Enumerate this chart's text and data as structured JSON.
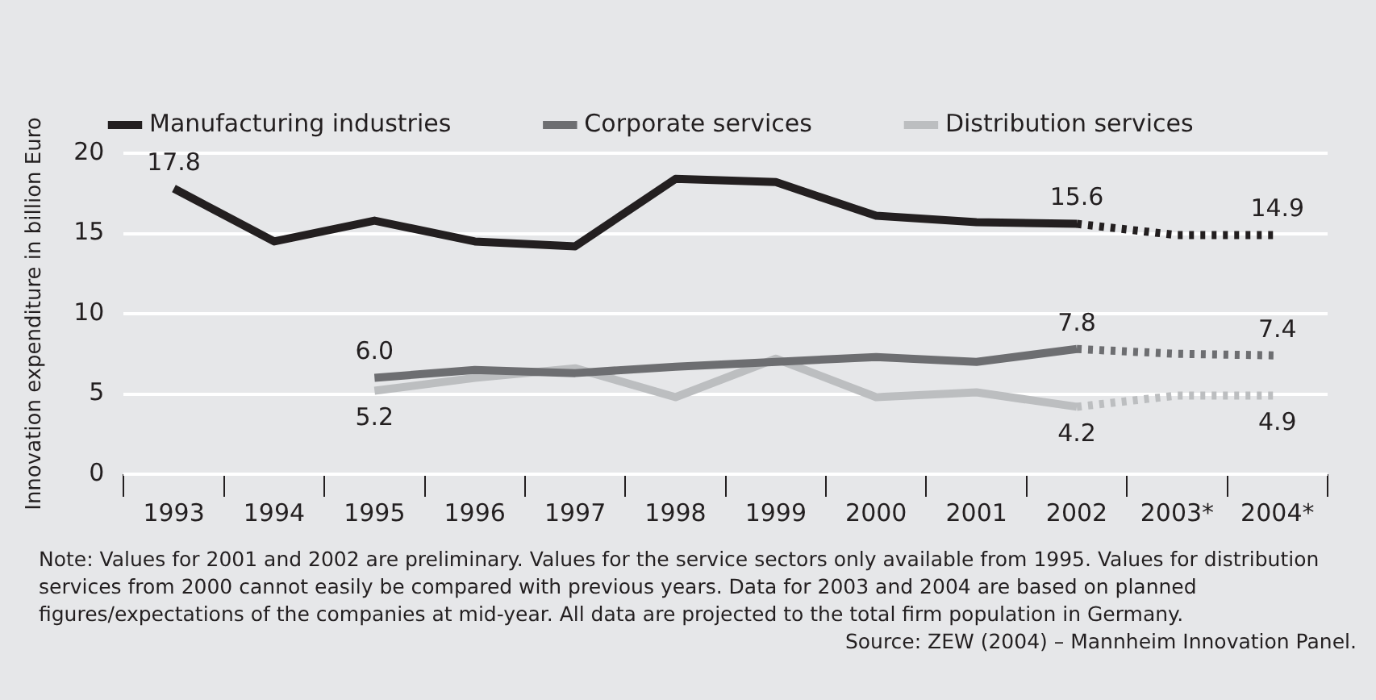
{
  "chart_data": {
    "type": "line",
    "ylabel": "Innovation expenditure in billion Euro",
    "categories": [
      "1993",
      "1994",
      "1995",
      "1996",
      "1997",
      "1998",
      "1999",
      "2000",
      "2001",
      "2002",
      "2003*",
      "2004*"
    ],
    "series": [
      {
        "name": "Manufacturing industries",
        "color": "#231f20",
        "values": [
          17.8,
          14.5,
          15.8,
          14.5,
          14.2,
          18.4,
          18.2,
          16.1,
          15.7,
          15.6,
          null,
          null
        ],
        "value_labels": [
          "17.8",
          null,
          null,
          null,
          null,
          null,
          null,
          null,
          null,
          "15.6",
          null,
          null
        ]
      },
      {
        "name": "Corporate services",
        "color": "#6d6e71",
        "values": [
          null,
          null,
          6.0,
          6.5,
          6.3,
          6.7,
          7.0,
          7.3,
          7.0,
          7.8,
          null,
          null
        ],
        "value_labels": [
          null,
          null,
          "6.0",
          null,
          null,
          null,
          null,
          null,
          null,
          "7.8",
          null,
          null
        ]
      },
      {
        "name": "Distribution services",
        "color": "#bcbec0",
        "values": [
          null,
          null,
          5.2,
          6.0,
          6.6,
          4.8,
          7.2,
          4.8,
          5.1,
          4.2,
          null,
          null
        ],
        "value_labels": [
          null,
          null,
          "5.2",
          null,
          null,
          null,
          null,
          null,
          null,
          "4.2",
          null,
          null
        ]
      },
      {
        "color": "#231f20",
        "line_style": "dotted",
        "values": [
          null,
          null,
          null,
          null,
          null,
          null,
          null,
          null,
          null,
          15.6,
          14.9,
          14.9
        ],
        "value_labels": [
          null,
          null,
          null,
          null,
          null,
          null,
          null,
          null,
          null,
          null,
          null,
          "14.9"
        ]
      },
      {
        "color": "#6d6e71",
        "line_style": "dotted",
        "values": [
          null,
          null,
          null,
          null,
          null,
          null,
          null,
          null,
          null,
          7.8,
          7.5,
          7.4
        ],
        "value_labels": [
          null,
          null,
          null,
          null,
          null,
          null,
          null,
          null,
          null,
          null,
          null,
          "7.4"
        ]
      },
      {
        "color": "#bcbec0",
        "line_style": "dotted",
        "values": [
          null,
          null,
          null,
          null,
          null,
          null,
          null,
          null,
          null,
          4.2,
          4.9,
          4.9
        ],
        "value_labels": [
          null,
          null,
          null,
          null,
          null,
          null,
          null,
          null,
          null,
          null,
          null,
          "4.9"
        ]
      }
    ],
    "ylim": [
      0,
      20
    ],
    "yticks": [
      0,
      5,
      10,
      15,
      20
    ],
    "grid": "y",
    "legend": "top left",
    "marker": "none",
    "annotations": [
      "Note: Values for 2001 and 2002 are preliminary. Values for the service sectors only available from 1995. Values for distribution services from 2000 cannot easily be compared with previous years. Data for 2003 and 2004 are based on planned figures/expectations of the companies at mid-year. All data are projected to the total firm population in Germany.",
      "Source: ZEW (2004) – Mannheim Innovation Panel."
    ]
  }
}
